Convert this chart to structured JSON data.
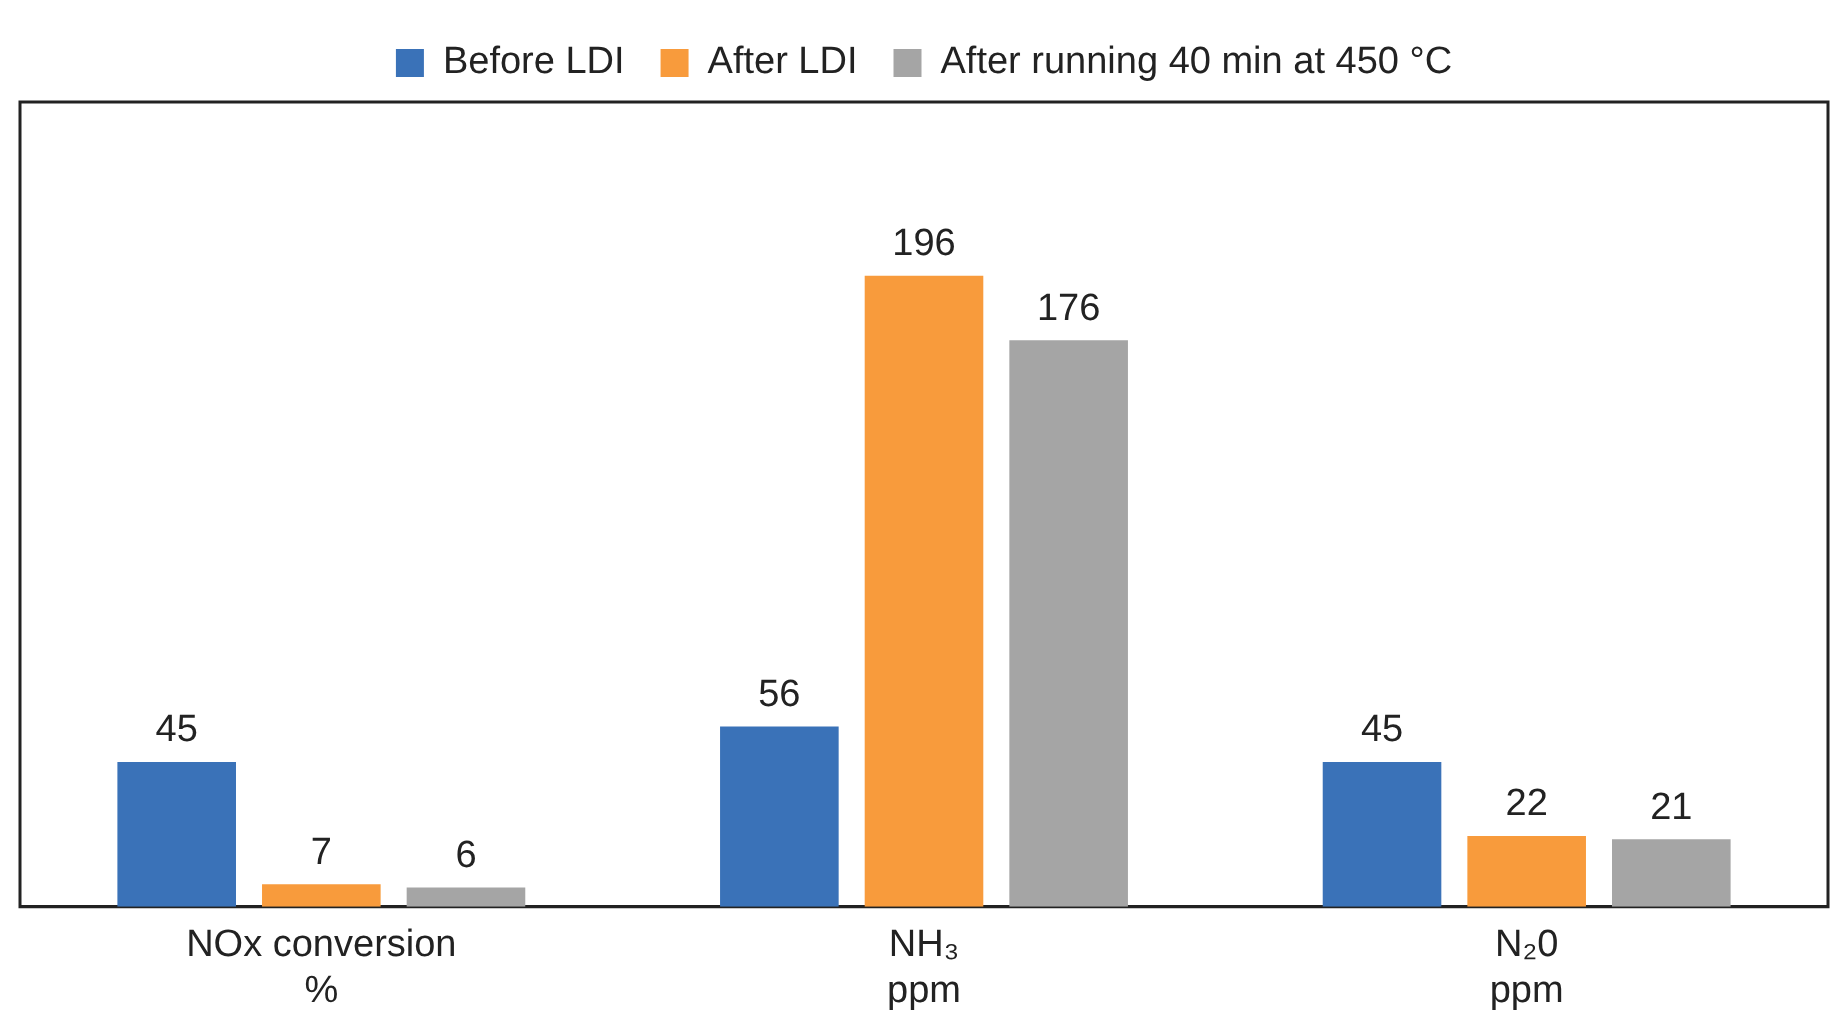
{
  "chart_data": {
    "type": "bar",
    "categories": [
      "NOx conversion\n%",
      "NH₃\nppm",
      "N₂0\nppm"
    ],
    "series": [
      {
        "name": "Before LDI",
        "color": "#3a72b8",
        "values": [
          45,
          56,
          45
        ]
      },
      {
        "name": "After LDI",
        "color": "#f89b3c",
        "values": [
          7,
          196,
          22
        ]
      },
      {
        "name": "After running 40 min at 450 °C",
        "color": "#a5a5a5",
        "values": [
          6,
          176,
          21
        ]
      }
    ],
    "data_labels": true,
    "legend": "top",
    "grid": false
  }
}
